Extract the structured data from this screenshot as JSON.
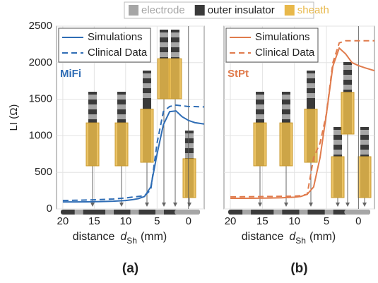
{
  "figure_legend": [
    {
      "name": "electrode",
      "color": "#a6a6a6"
    },
    {
      "name": "outer insulator",
      "color": "#3a3a3a"
    },
    {
      "name": "sheath",
      "color": "#e8b84a"
    }
  ],
  "chart_data": [
    {
      "type": "line",
      "label": "(a)",
      "annotation": "MiFi",
      "ylabel": "LI (Ω)",
      "xlabel": [
        "distance",
        "d",
        "Sh",
        "(mm)"
      ],
      "x": [
        20,
        18,
        16,
        14,
        12,
        10,
        9,
        8,
        7,
        6,
        5,
        4,
        3,
        2,
        1,
        0,
        -1,
        -2.5
      ],
      "series": [
        {
          "name": "Simulations",
          "color": "#2f6db5",
          "dash": false,
          "values": [
            95,
            95,
            97,
            100,
            105,
            115,
            125,
            140,
            170,
            300,
            750,
            1150,
            1330,
            1340,
            1260,
            1210,
            1180,
            1160
          ]
        },
        {
          "name": "Clinical Data",
          "color": "#2f6db5",
          "dash": true,
          "values": [
            115,
            118,
            122,
            128,
            135,
            150,
            160,
            170,
            180,
            260,
            900,
            1330,
            1400,
            1420,
            1410,
            1400,
            1400,
            1395
          ]
        }
      ],
      "xlim": [
        21,
        -2.5
      ],
      "xticks": [
        20,
        15,
        10,
        5,
        0
      ],
      "ylim": [
        0,
        2500
      ],
      "yticks": [
        0,
        500,
        1000,
        1500,
        2000,
        2500
      ],
      "grid": true
    },
    {
      "type": "line",
      "label": "(b)",
      "annotation": "StPt",
      "xlabel": [
        "distance",
        "d",
        "Sh",
        "(mm)"
      ],
      "x": [
        20,
        18,
        16,
        14,
        12,
        10,
        9,
        8,
        7,
        6,
        5,
        4,
        3,
        2,
        1,
        0,
        -1,
        -2.5
      ],
      "series": [
        {
          "name": "Simulations",
          "color": "#e07b4c",
          "dash": false,
          "values": [
            145,
            145,
            146,
            148,
            152,
            160,
            170,
            200,
            300,
            700,
            1300,
            1950,
            2200,
            2120,
            2000,
            1960,
            1930,
            1890
          ]
        },
        {
          "name": "Clinical Data",
          "color": "#e07b4c",
          "dash": true,
          "values": [
            165,
            166,
            168,
            170,
            172,
            175,
            180,
            200,
            700,
            900,
            1300,
            2000,
            2270,
            2300,
            2300,
            2300,
            2300,
            2300
          ]
        }
      ],
      "xlim": [
        21,
        -2.5
      ],
      "xticks": [
        20,
        15,
        10,
        5,
        0
      ],
      "ylim": [
        0,
        2500
      ],
      "yticks": [
        0,
        500,
        1000,
        1500,
        2000,
        2500
      ],
      "grid": true
    }
  ]
}
